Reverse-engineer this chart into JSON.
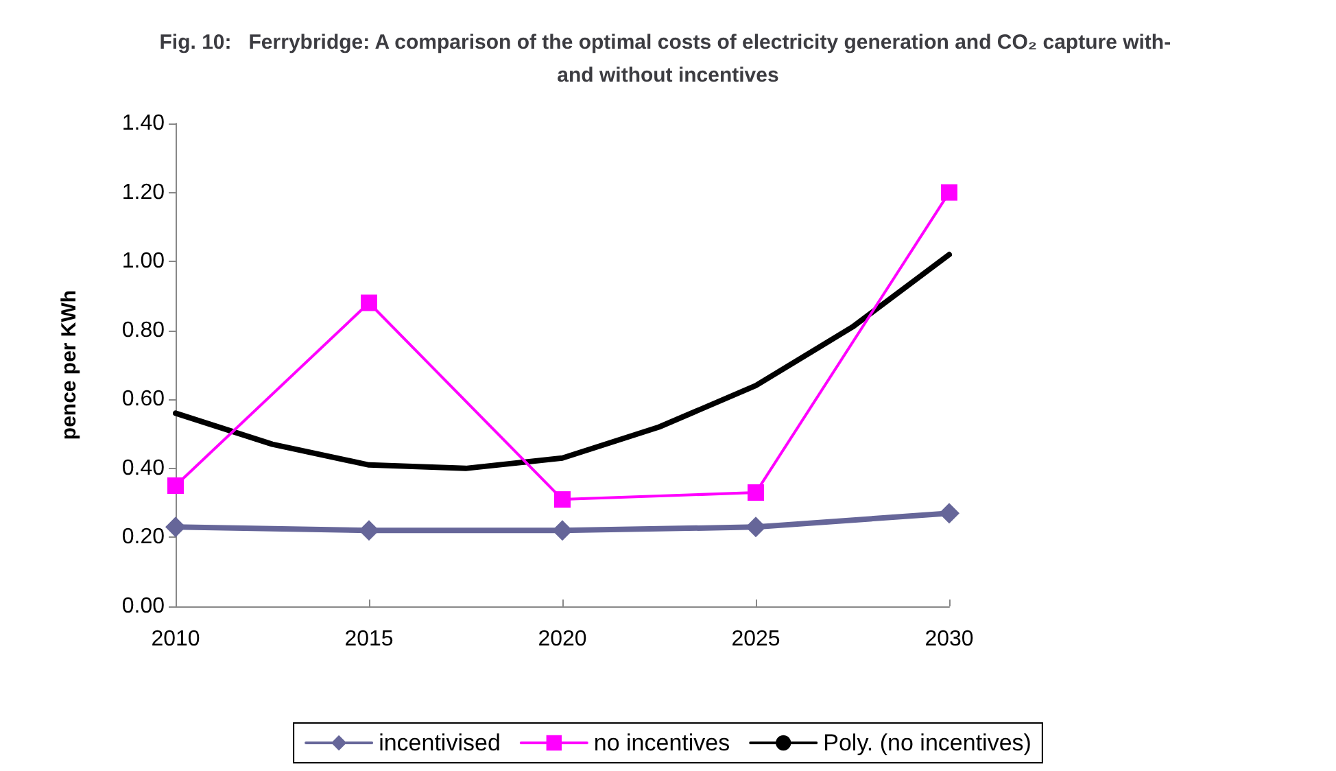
{
  "chart_data": {
    "type": "line",
    "title": "Fig. 10:   Ferrybridge: A comparison of the optimal costs of electricity generation and CO₂ capture with- and without incentives",
    "ylabel": "pence per KWh",
    "x": [
      2010,
      2015,
      2020,
      2025,
      2030
    ],
    "series": [
      {
        "name": "incentivised",
        "color": "#666699",
        "marker": "diamond",
        "values": [
          0.23,
          0.22,
          0.22,
          0.23,
          0.27
        ]
      },
      {
        "name": "no incentives",
        "color": "#ff00ff",
        "marker": "square",
        "values": [
          0.35,
          0.88,
          0.31,
          0.33,
          1.2
        ]
      },
      {
        "name": "Poly. (no incentives)",
        "color": "#000000",
        "marker": "none",
        "x": [
          2010,
          2012.5,
          2015,
          2017.5,
          2020,
          2022.5,
          2025,
          2027.5,
          2030
        ],
        "values": [
          0.56,
          0.47,
          0.41,
          0.4,
          0.43,
          0.52,
          0.64,
          0.81,
          1.02
        ]
      }
    ],
    "xlim": [
      2010,
      2030
    ],
    "xticks": [
      2010,
      2015,
      2020,
      2025,
      2030
    ],
    "ylim": [
      0,
      1.4
    ],
    "yticks": [
      {
        "value": 0,
        "label": "0.00"
      },
      {
        "value": 0.2,
        "label": "0.20"
      },
      {
        "value": 0.4,
        "label": "0.40"
      },
      {
        "value": 0.6,
        "label": "0.60"
      },
      {
        "value": 0.8,
        "label": "0.80"
      },
      {
        "value": 1.0,
        "label": "1.00"
      },
      {
        "value": 1.2,
        "label": "1.20"
      },
      {
        "value": 1.4,
        "label": "1.40"
      }
    ],
    "grid": false,
    "legend": "bottom",
    "line_style": "solid"
  }
}
